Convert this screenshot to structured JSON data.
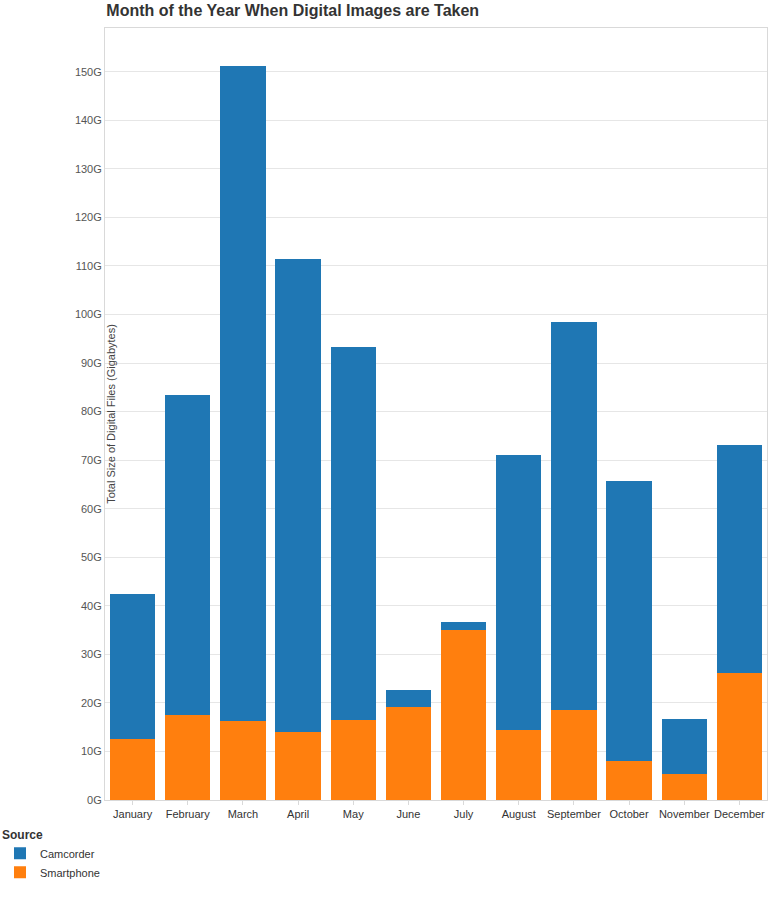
{
  "chart_data": {
    "type": "bar",
    "title": "Month of the Year When Digital Images are Taken",
    "y_label": "Total Size of Digital Files (Gigabytes)",
    "legend_title": "Source",
    "categories": [
      "January",
      "February",
      "March",
      "April",
      "May",
      "June",
      "July",
      "August",
      "September",
      "October",
      "November",
      "December"
    ],
    "series": [
      {
        "name": "Camcorder",
        "color": "#1f77b4",
        "values": [
          30.0,
          66.0,
          134.8,
          97.4,
          76.7,
          3.6,
          1.6,
          56.5,
          79.9,
          57.6,
          11.3,
          47.0
        ]
      },
      {
        "name": "Smartphone",
        "color": "#ff7f0e",
        "values": [
          12.5,
          17.5,
          16.3,
          14.1,
          16.5,
          19.1,
          35.0,
          14.5,
          18.5,
          8.0,
          5.4,
          26.2
        ]
      }
    ],
    "stacked": true,
    "ylim": [
      0,
      159
    ],
    "yticks": [
      {
        "value": 0,
        "label": "0G"
      },
      {
        "value": 10,
        "label": "10G"
      },
      {
        "value": 20,
        "label": "20G"
      },
      {
        "value": 30,
        "label": "30G"
      },
      {
        "value": 40,
        "label": "40G"
      },
      {
        "value": 50,
        "label": "50G"
      },
      {
        "value": 60,
        "label": "60G"
      },
      {
        "value": 70,
        "label": "70G"
      },
      {
        "value": 80,
        "label": "80G"
      },
      {
        "value": 90,
        "label": "90G"
      },
      {
        "value": 100,
        "label": "100G"
      },
      {
        "value": 110,
        "label": "110G"
      },
      {
        "value": 120,
        "label": "120G"
      },
      {
        "value": 130,
        "label": "130G"
      },
      {
        "value": 140,
        "label": "140G"
      },
      {
        "value": 150,
        "label": "150G"
      }
    ],
    "grid": true,
    "legend": "bottom left"
  }
}
